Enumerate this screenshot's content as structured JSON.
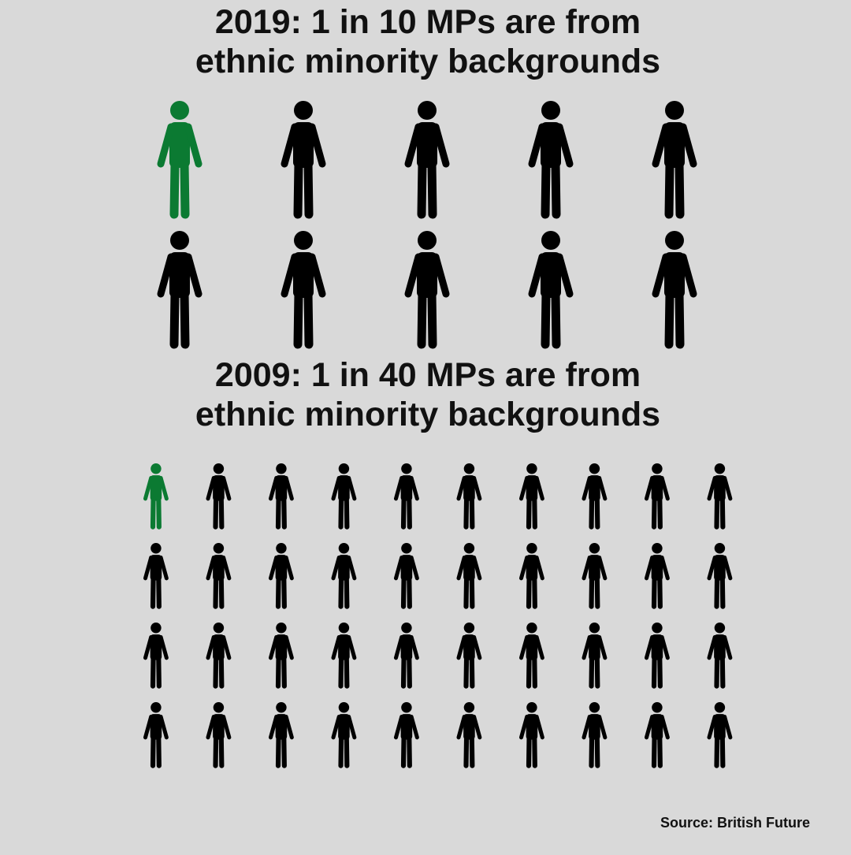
{
  "chart_data": [
    {
      "type": "pictogram",
      "title": "2019: 1 in 10 MPs are from ethnic minority backgrounds",
      "total": 10,
      "highlighted": 1,
      "color": "#000000",
      "highlight_color": "#0b7a32"
    },
    {
      "type": "pictogram",
      "title": "2009: 1 in 40 MPs are from ethnic minority backgrounds",
      "total": 40,
      "highlighted": 1,
      "color": "#000000",
      "highlight_color": "#0b7a32"
    }
  ],
  "source": "Source: British Future"
}
